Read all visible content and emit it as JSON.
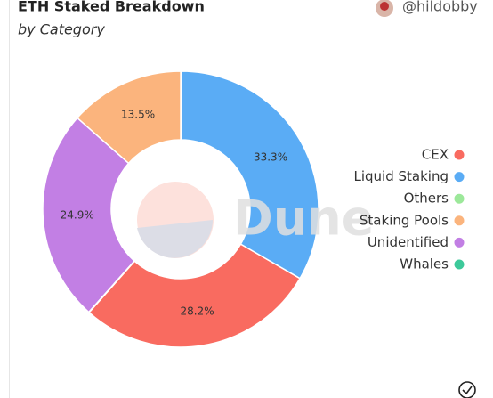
{
  "chart_data": {
    "type": "donut",
    "title": "ETH Staked Breakdown",
    "subtitle": "by Category",
    "author": "@hildobby",
    "watermark": "Dune",
    "categories": [
      "CEX",
      "Liquid Staking",
      "Others",
      "Staking Pools",
      "Unidentified",
      "Whales"
    ],
    "values": [
      28.2,
      33.3,
      0.05,
      13.5,
      24.9,
      0.05
    ],
    "value_labels": [
      "28.2%",
      "33.3%",
      null,
      "13.5%",
      "24.9%",
      null
    ],
    "colors": [
      "#f96b60",
      "#5aacf5",
      "#9ce89a",
      "#fbb47d",
      "#c27fe4",
      "#3dc99a"
    ],
    "legend": "right"
  }
}
